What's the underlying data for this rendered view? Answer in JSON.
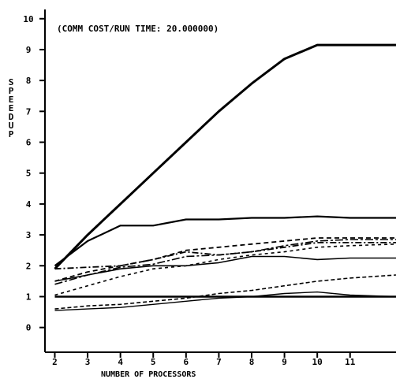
{
  "chart_data": {
    "type": "line",
    "title": "(COMM COST/RUN TIME: 20.000000)",
    "xlabel": "NUMBER OF PROCESSORS",
    "ylabel": "SPEEDUP",
    "x_ticks": [
      "2",
      "3",
      "4",
      "5",
      "6",
      "7",
      "8",
      "9",
      "10",
      "11"
    ],
    "y_ticks": [
      "0",
      "1",
      "2",
      "3",
      "4",
      "5",
      "6",
      "7",
      "8",
      "9",
      "10"
    ],
    "xlim": [
      1.7,
      12.4
    ],
    "ylim": [
      -0.8,
      10.3
    ],
    "grid": false,
    "series": [
      {
        "style": "solid-thick",
        "x": [
          2,
          3,
          4,
          5,
          6,
          7,
          8,
          9,
          10,
          11,
          12.4
        ],
        "y": [
          1.9,
          3.0,
          4.0,
          5.0,
          6.0,
          7.0,
          7.9,
          8.7,
          9.15,
          9.15,
          9.15
        ]
      },
      {
        "style": "solid",
        "x": [
          2,
          3,
          4,
          5,
          6,
          7,
          8,
          9,
          10,
          11,
          12.4
        ],
        "y": [
          2.0,
          2.8,
          3.3,
          3.3,
          3.5,
          3.5,
          3.55,
          3.55,
          3.6,
          3.55,
          3.55
        ]
      },
      {
        "style": "dash-dot",
        "x": [
          2,
          3,
          4,
          5,
          6,
          7,
          8,
          9,
          10,
          11,
          12.4
        ],
        "y": [
          1.9,
          1.95,
          2.0,
          2.2,
          2.45,
          2.35,
          2.45,
          2.6,
          2.75,
          2.75,
          2.75
        ]
      },
      {
        "style": "dashed",
        "x": [
          2,
          3,
          4,
          5,
          6,
          7,
          8,
          9,
          10,
          11,
          12.4
        ],
        "y": [
          1.5,
          1.8,
          2.0,
          2.2,
          2.5,
          2.6,
          2.7,
          2.8,
          2.9,
          2.9,
          2.9
        ]
      },
      {
        "style": "dash-dot-2",
        "x": [
          2,
          3,
          4,
          5,
          6,
          7,
          8,
          9,
          10,
          11,
          12.4
        ],
        "y": [
          1.4,
          1.7,
          1.95,
          2.05,
          2.3,
          2.35,
          2.45,
          2.65,
          2.8,
          2.85,
          2.85
        ]
      },
      {
        "style": "solid-thin",
        "x": [
          2,
          3,
          4,
          5,
          6,
          7,
          8,
          9,
          10,
          11,
          12.4
        ],
        "y": [
          1.5,
          1.7,
          1.9,
          2.0,
          2.0,
          2.1,
          2.3,
          2.3,
          2.2,
          2.25,
          2.25
        ]
      },
      {
        "style": "dashed-2",
        "x": [
          2,
          3,
          4,
          5,
          6,
          7,
          8,
          9,
          10,
          11,
          12.4
        ],
        "y": [
          1.05,
          1.35,
          1.65,
          1.9,
          2.0,
          2.2,
          2.35,
          2.45,
          2.6,
          2.65,
          2.7
        ]
      },
      {
        "style": "dashed-3",
        "x": [
          2,
          3,
          4,
          5,
          6,
          7,
          8,
          9,
          10,
          11,
          12.4
        ],
        "y": [
          0.6,
          0.7,
          0.75,
          0.85,
          0.95,
          1.1,
          1.2,
          1.35,
          1.5,
          1.6,
          1.7
        ]
      },
      {
        "style": "solid-thin-2",
        "x": [
          2,
          3,
          4,
          5,
          6,
          7,
          8,
          9,
          10,
          11,
          12.4
        ],
        "y": [
          0.55,
          0.6,
          0.65,
          0.75,
          0.85,
          0.95,
          1.0,
          1.1,
          1.15,
          1.05,
          1.0
        ]
      },
      {
        "style": "solid-base",
        "x": [
          2,
          3,
          4,
          5,
          6,
          7,
          8,
          9,
          10,
          11,
          12.4
        ],
        "y": [
          1.0,
          1.0,
          1.0,
          1.0,
          1.0,
          1.0,
          1.0,
          1.0,
          1.0,
          1.0,
          1.0
        ]
      }
    ]
  }
}
